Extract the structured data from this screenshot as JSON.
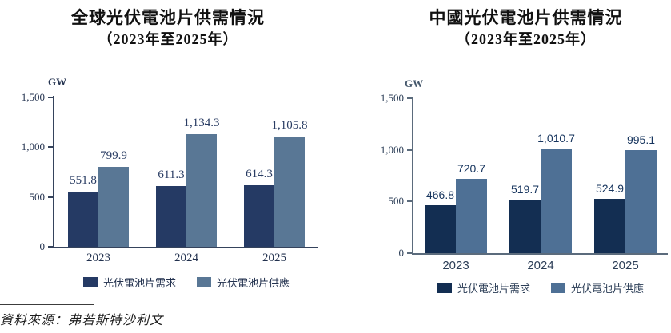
{
  "chart_data": [
    {
      "type": "bar",
      "title": "全球光伏電池片供需情況",
      "subtitle": "（2023年至2025年）",
      "ylabel": "GW",
      "xlabel": "",
      "ylim": [
        0,
        1500
      ],
      "y_ticks": [
        "1,500",
        "1,000",
        "500",
        "0"
      ],
      "grid": false,
      "legend_position": "bottom",
      "categories": [
        "2023",
        "2024",
        "2025"
      ],
      "series": [
        {
          "name": "光伏電池片需求",
          "color": "#253a64",
          "values": [
            551.8,
            611.3,
            614.3
          ],
          "labels": [
            "551.8",
            "611.3",
            "614.3"
          ]
        },
        {
          "name": "光伏電池片供應",
          "color": "#597795",
          "values": [
            799.9,
            1134.3,
            1105.8
          ],
          "labels": [
            "799.9",
            "1,134.3",
            "1,105.8"
          ]
        }
      ]
    },
    {
      "type": "bar",
      "title": "中國光伏電池片供需情況",
      "subtitle": "（2023年至2025年）",
      "ylabel": "GW",
      "xlabel": "",
      "ylim": [
        0,
        1500
      ],
      "y_ticks": [
        "1,500",
        "1,000",
        "500",
        "0"
      ],
      "grid": false,
      "legend_position": "bottom",
      "categories": [
        "2023",
        "2024",
        "2025"
      ],
      "series": [
        {
          "name": "光伏電池片需求",
          "color": "#132e52",
          "values": [
            466.8,
            519.7,
            524.9
          ],
          "labels": [
            "466.8",
            "519.7",
            "524.9"
          ]
        },
        {
          "name": "光伏電池片供應",
          "color": "#4e7095",
          "values": [
            720.7,
            1010.7,
            995.1
          ],
          "labels": [
            "720.7",
            "1,010.7",
            "995.1"
          ]
        }
      ]
    }
  ],
  "source": {
    "text": "資料來源：弗若斯特沙利文"
  }
}
